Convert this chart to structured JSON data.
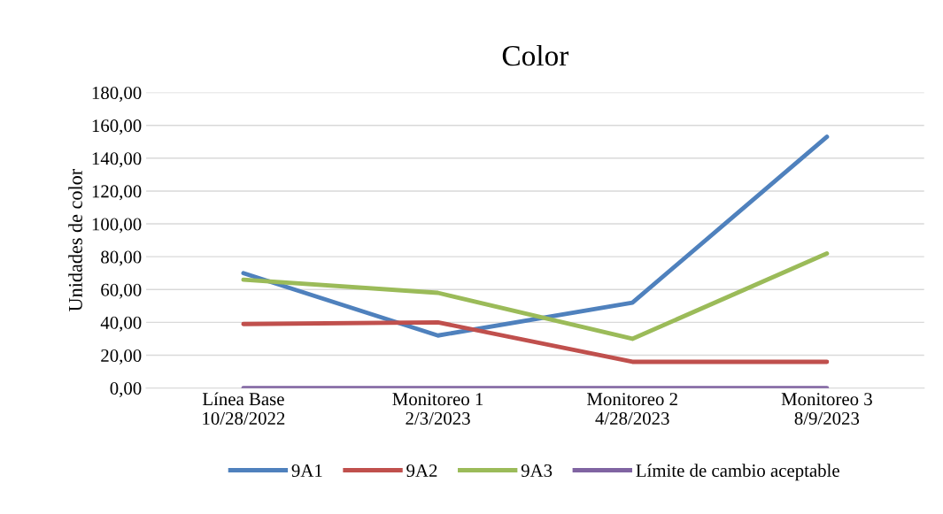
{
  "chart_data": {
    "type": "line",
    "title": "Color",
    "ylabel": "Unidades de color",
    "categories": [
      "Línea Base\n10/28/2022",
      "Monitoreo 1\n2/3/2023",
      "Monitoreo 2\n4/28/2023",
      "Monitoreo 3\n8/9/2023"
    ],
    "series": [
      {
        "name": "9A1",
        "color": "#4f81bd",
        "values": [
          70,
          32,
          52,
          153
        ]
      },
      {
        "name": "9A2",
        "color": "#c0504d",
        "values": [
          39,
          40,
          16,
          16
        ]
      },
      {
        "name": "9A3",
        "color": "#9bbb59",
        "values": [
          66,
          58,
          30,
          82
        ]
      },
      {
        "name": "Límite de cambio aceptable",
        "color": "#8064a2",
        "values": [
          0,
          0,
          0,
          0
        ]
      }
    ],
    "ylim": [
      0,
      180
    ],
    "yticks": [
      {
        "value": 0,
        "label": "0,00"
      },
      {
        "value": 20,
        "label": "20,00"
      },
      {
        "value": 40,
        "label": "40,00"
      },
      {
        "value": 60,
        "label": "60,00"
      },
      {
        "value": 80,
        "label": "80,00"
      },
      {
        "value": 100,
        "label": "100,00"
      },
      {
        "value": 120,
        "label": "120,00"
      },
      {
        "value": 140,
        "label": "140,00"
      },
      {
        "value": 160,
        "label": "160,00"
      },
      {
        "value": 180,
        "label": "180,00"
      }
    ],
    "grid": "y",
    "legend": "bottom",
    "marker": "none",
    "line_style": "solid"
  }
}
